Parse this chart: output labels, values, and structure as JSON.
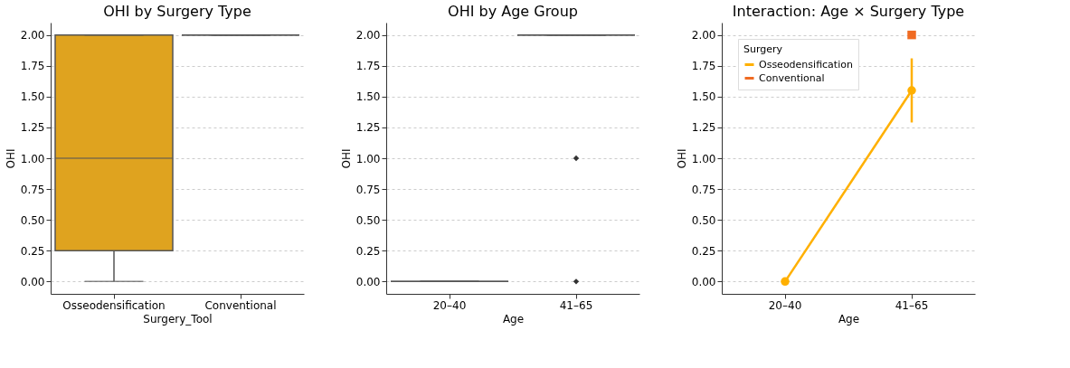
{
  "chart_data": [
    {
      "type": "box",
      "title": "OHI by Surgery Type",
      "xlabel": "Surgery_Tool",
      "ylabel": "OHI",
      "categories": [
        "Osseodensification",
        "Conventional"
      ],
      "boxes": [
        {
          "low": 0,
          "q1": 0.25,
          "median": 1,
          "q3": 2,
          "high": 2
        },
        {
          "low": 2,
          "q1": 2,
          "median": 2,
          "q3": 2,
          "high": 2
        }
      ],
      "colors": [
        "#dfa31f",
        null
      ],
      "ylim": [
        -0.1,
        2.1
      ],
      "yticks": [
        {
          "value": 0,
          "label": "0.00"
        },
        {
          "value": 0.25,
          "label": "0.25"
        },
        {
          "value": 0.5,
          "label": "0.50"
        },
        {
          "value": 0.75,
          "label": "0.75"
        },
        {
          "value": 1,
          "label": "1.00"
        },
        {
          "value": 1.25,
          "label": "1.25"
        },
        {
          "value": 1.5,
          "label": "1.50"
        },
        {
          "value": 1.75,
          "label": "1.75"
        },
        {
          "value": 2,
          "label": "2.00"
        }
      ],
      "grid": "y"
    },
    {
      "type": "box",
      "title": "OHI by Age Group",
      "xlabel": "Age",
      "ylabel": "OHI",
      "categories": [
        "20–40",
        "41–65"
      ],
      "boxes": [
        {
          "low": 0,
          "q1": 0,
          "median": 0,
          "q3": 0,
          "high": 0
        },
        {
          "low": 2,
          "q1": 2,
          "median": 2,
          "q3": 2,
          "high": 2,
          "outliers": [
            1,
            0
          ]
        }
      ],
      "colors": [
        null,
        null
      ],
      "ylim": [
        -0.1,
        2.1
      ],
      "yticks": [
        {
          "value": 0,
          "label": "0.00"
        },
        {
          "value": 0.25,
          "label": "0.25"
        },
        {
          "value": 0.5,
          "label": "0.50"
        },
        {
          "value": 0.75,
          "label": "0.75"
        },
        {
          "value": 1,
          "label": "1.00"
        },
        {
          "value": 1.25,
          "label": "1.25"
        },
        {
          "value": 1.5,
          "label": "1.50"
        },
        {
          "value": 1.75,
          "label": "1.75"
        },
        {
          "value": 2,
          "label": "2.00"
        }
      ],
      "grid": "y"
    },
    {
      "type": "line",
      "title": "Interaction: Age × Surgery Type",
      "xlabel": "Age",
      "ylabel": "OHI",
      "legend_title": "Surgery",
      "legend": "top left",
      "categories": [
        "20–40",
        "41–65"
      ],
      "series": [
        {
          "name": "Osseodensification",
          "color": "#ffb000",
          "values": [
            0,
            1.55
          ],
          "errors": [
            null,
            [
              1.29,
              1.81
            ]
          ],
          "marker": "circle"
        },
        {
          "name": "Conventional",
          "color": "#f06b22",
          "values": [
            null,
            2
          ],
          "marker": "square"
        }
      ],
      "ylim": [
        -0.1,
        2.1
      ],
      "yticks": [
        {
          "value": 0,
          "label": "0.00"
        },
        {
          "value": 0.25,
          "label": "0.25"
        },
        {
          "value": 0.5,
          "label": "0.50"
        },
        {
          "value": 0.75,
          "label": "0.75"
        },
        {
          "value": 1,
          "label": "1.00"
        },
        {
          "value": 1.25,
          "label": "1.25"
        },
        {
          "value": 1.5,
          "label": "1.50"
        },
        {
          "value": 1.75,
          "label": "1.75"
        },
        {
          "value": 2,
          "label": "2.00"
        }
      ],
      "grid": "y"
    }
  ]
}
